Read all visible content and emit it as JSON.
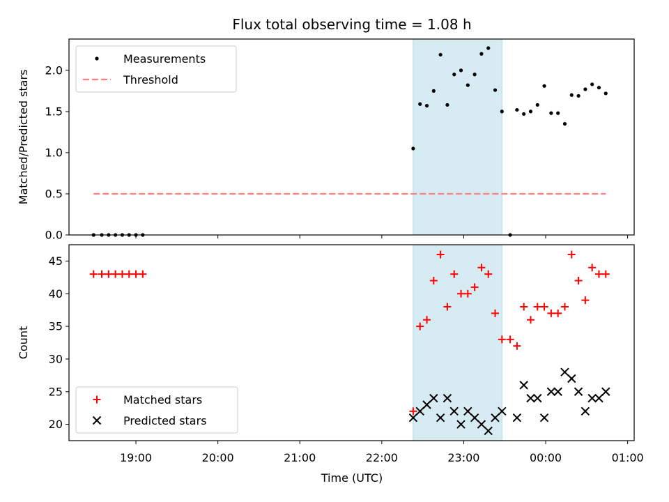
{
  "chart_data": {
    "type": "scatter",
    "title": "Flux total observing time = 1.08 h",
    "xlabel": "Time (UTC)",
    "x_ticks": [
      "19:00",
      "20:00",
      "21:00",
      "22:00",
      "23:00",
      "00:00",
      "01:00"
    ],
    "highlight_span": {
      "from": "22:23",
      "to": "23:28"
    },
    "panels": [
      {
        "ylabel": "Matched/Predicted stars",
        "ylim": [
          0,
          2.38
        ],
        "y_ticks": [
          "0.0",
          "0.5",
          "1.0",
          "1.5",
          "2.0"
        ],
        "legend_position": "top-left",
        "series": [
          {
            "name": "Measurements",
            "marker": "dot",
            "color": "#000000",
            "points": [
              [
                "18:29",
                0
              ],
              [
                "18:35",
                0
              ],
              [
                "18:40",
                0
              ],
              [
                "18:45",
                0
              ],
              [
                "18:50",
                0
              ],
              [
                "18:55",
                0
              ],
              [
                "19:00",
                0
              ],
              [
                "19:05",
                0
              ],
              [
                "22:23",
                1.05
              ],
              [
                "22:28",
                1.59
              ],
              [
                "22:33",
                1.57
              ],
              [
                "22:38",
                1.75
              ],
              [
                "22:43",
                2.19
              ],
              [
                "22:48",
                1.58
              ],
              [
                "22:53",
                1.95
              ],
              [
                "22:58",
                2.0
              ],
              [
                "23:03",
                1.82
              ],
              [
                "23:08",
                1.95
              ],
              [
                "23:13",
                2.2
              ],
              [
                "23:18",
                2.27
              ],
              [
                "23:23",
                1.76
              ],
              [
                "23:28",
                1.5
              ],
              [
                "23:34",
                0
              ],
              [
                "23:39",
                1.52
              ],
              [
                "23:44",
                1.47
              ],
              [
                "23:49",
                1.5
              ],
              [
                "23:54",
                1.58
              ],
              [
                "23:59",
                1.81
              ],
              [
                "00:04",
                1.48
              ],
              [
                "00:09",
                1.48
              ],
              [
                "00:14",
                1.35
              ],
              [
                "00:19",
                1.7
              ],
              [
                "00:24",
                1.69
              ],
              [
                "00:29",
                1.77
              ],
              [
                "00:34",
                1.83
              ],
              [
                "00:39",
                1.79
              ],
              [
                "00:44",
                1.72
              ]
            ]
          },
          {
            "name": "Threshold",
            "style": "dashed",
            "color": "#ff7f7f",
            "points": [
              [
                "18:29",
                0.5
              ],
              [
                "00:44",
                0.5
              ]
            ]
          }
        ]
      },
      {
        "ylabel": "Count",
        "ylim": [
          17.5,
          47.5
        ],
        "y_ticks": [
          "20",
          "25",
          "30",
          "35",
          "40",
          "45"
        ],
        "legend_position": "bottom-left",
        "series": [
          {
            "name": "Matched stars",
            "marker": "plus",
            "color": "#ff0000",
            "points": [
              [
                "18:29",
                43
              ],
              [
                "18:35",
                43
              ],
              [
                "18:40",
                43
              ],
              [
                "18:45",
                43
              ],
              [
                "18:50",
                43
              ],
              [
                "18:55",
                43
              ],
              [
                "19:00",
                43
              ],
              [
                "19:05",
                43
              ],
              [
                "22:23",
                22
              ],
              [
                "22:28",
                35
              ],
              [
                "22:33",
                36
              ],
              [
                "22:38",
                42
              ],
              [
                "22:43",
                46
              ],
              [
                "22:48",
                38
              ],
              [
                "22:53",
                43
              ],
              [
                "22:58",
                40
              ],
              [
                "23:03",
                40
              ],
              [
                "23:08",
                41
              ],
              [
                "23:13",
                44
              ],
              [
                "23:18",
                43
              ],
              [
                "23:23",
                37
              ],
              [
                "23:28",
                33
              ],
              [
                "23:34",
                33
              ],
              [
                "23:39",
                32
              ],
              [
                "23:44",
                38
              ],
              [
                "23:49",
                36
              ],
              [
                "23:54",
                38
              ],
              [
                "23:59",
                38
              ],
              [
                "00:04",
                37
              ],
              [
                "00:09",
                37
              ],
              [
                "00:14",
                38
              ],
              [
                "00:19",
                46
              ],
              [
                "00:24",
                42
              ],
              [
                "00:29",
                39
              ],
              [
                "00:34",
                44
              ],
              [
                "00:39",
                43
              ],
              [
                "00:44",
                43
              ]
            ]
          },
          {
            "name": "Predicted stars",
            "marker": "x",
            "color": "#000000",
            "points": [
              [
                "22:23",
                21
              ],
              [
                "22:28",
                22
              ],
              [
                "22:33",
                23
              ],
              [
                "22:38",
                24
              ],
              [
                "22:43",
                21
              ],
              [
                "22:48",
                24
              ],
              [
                "22:53",
                22
              ],
              [
                "22:58",
                20
              ],
              [
                "23:03",
                22
              ],
              [
                "23:08",
                21
              ],
              [
                "23:13",
                20
              ],
              [
                "23:18",
                19
              ],
              [
                "23:23",
                21
              ],
              [
                "23:28",
                22
              ],
              [
                "23:39",
                21
              ],
              [
                "23:44",
                26
              ],
              [
                "23:49",
                24
              ],
              [
                "23:54",
                24
              ],
              [
                "23:59",
                21
              ],
              [
                "00:04",
                25
              ],
              [
                "00:09",
                25
              ],
              [
                "00:14",
                28
              ],
              [
                "00:19",
                27
              ],
              [
                "00:24",
                25
              ],
              [
                "00:29",
                22
              ],
              [
                "00:34",
                24
              ],
              [
                "00:39",
                24
              ],
              [
                "00:44",
                25
              ]
            ]
          }
        ]
      }
    ]
  },
  "colors": {
    "highlight": "#add8e6",
    "threshold": "#ff7f7f",
    "matched": "#ff0000",
    "predicted": "#000000",
    "measurements": "#000000"
  }
}
